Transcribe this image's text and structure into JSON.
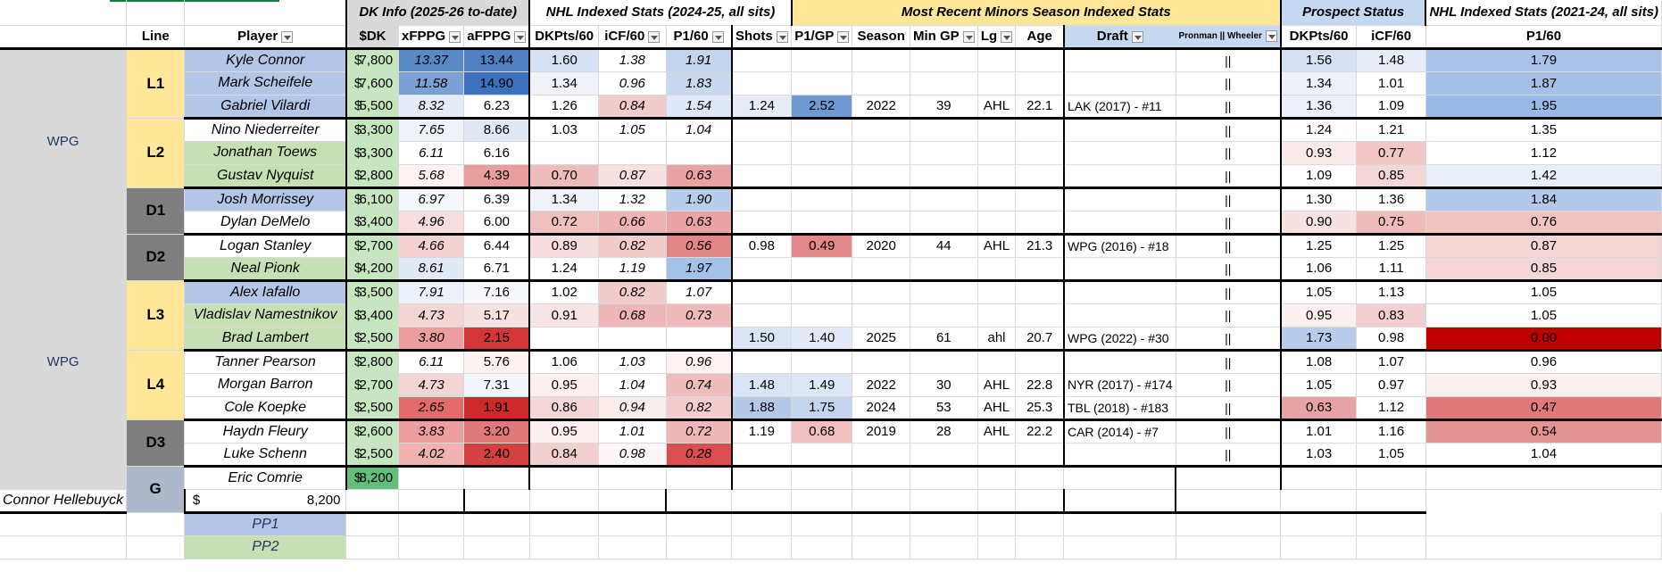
{
  "headers": {
    "groups": [
      {
        "name": "dk_group",
        "label": "DK Info (2025-26 to-date)"
      },
      {
        "name": "nhl_group",
        "label": "NHL Indexed Stats (2024-25, all sits)"
      },
      {
        "name": "minors_group",
        "label": "Most Recent Minors Season Indexed Stats"
      },
      {
        "name": "prospect_group",
        "label": "Prospect Status"
      },
      {
        "name": "nhl3_group",
        "label": "NHL Indexed Stats (2021-24, all sits)"
      }
    ],
    "columns": [
      "Line",
      "Player",
      "$DK",
      "xFPPG",
      "aFPPG",
      "DKPts/60",
      "iCF/60",
      "P1/60",
      "Shots",
      "P1/GP",
      "Season",
      "Min GP",
      "Lg",
      "Age",
      "Draft",
      "Pronman || Wheeler",
      "DKPts/60",
      "iCF/60",
      "P1/60"
    ]
  },
  "team_labels": [
    "WPG",
    "WPG"
  ],
  "groups": [
    {
      "line": "L1",
      "type": "F",
      "rows": [
        {
          "player": "Kyle Connor",
          "pc": "blue",
          "dk": "7,800",
          "xf": "13.37",
          "af": "13.44",
          "nhl": [
            "1.60",
            "1.38",
            "1.91"
          ],
          "min": [
            "",
            "",
            "",
            "",
            "",
            ""
          ],
          "draft": "",
          "pr": "||",
          "n3": [
            "1.56",
            "1.48",
            "1.79"
          ],
          "c": {
            "xf": "#5a8ac6",
            "af": "#4f81c2",
            "n0": "#d6e2f3",
            "n1": "#fff",
            "n2": "#c2d4ee",
            "n30": "#d6e2f3",
            "n31": "#e8eef8",
            "n32": "#a9c3e8"
          }
        },
        {
          "player": "Mark Scheifele",
          "pc": "blue",
          "dk": "7,600",
          "xf": "11.58",
          "af": "14.90",
          "nhl": [
            "1.34",
            "0.96",
            "1.83"
          ],
          "min": [
            "",
            "",
            "",
            "",
            "",
            ""
          ],
          "draft": "",
          "pr": "||",
          "n3": [
            "1.34",
            "1.01",
            "1.87"
          ],
          "c": {
            "xf": "#7ba0d4",
            "af": "#3d71be",
            "n0": "#eef3fa",
            "n1": "#fff",
            "n2": "#c8d8ef",
            "n30": "#edf2fa",
            "n31": "#fff",
            "n32": "#a4c0e6"
          }
        },
        {
          "player": "Gabriel Vilardi",
          "pc": "blue",
          "dk": "5,500",
          "xf": "8.32",
          "af": "6.23",
          "nhl": [
            "1.26",
            "0.84",
            "1.54"
          ],
          "min": [
            "1.24",
            "2.52",
            "2022",
            "39",
            "AHL",
            "22.1"
          ],
          "draft": "LAK (2017) - #11",
          "pr": "||",
          "n3": [
            "1.36",
            "1.09",
            "1.95"
          ],
          "c": {
            "xf": "#e6ecf7",
            "af": "#fff",
            "n0": "#fff",
            "n1": "#f2cccc",
            "n2": "#dfe8f6",
            "n30": "#ebf0f9",
            "n31": "#fff",
            "n32": "#9ab9e4",
            "m0": "#e6edf8",
            "m1": "#6e9ad3"
          }
        }
      ]
    },
    {
      "line": "L2",
      "type": "F",
      "rows": [
        {
          "player": "Nino Niederreiter",
          "pc": "none",
          "dk": "3,300",
          "xf": "7.65",
          "af": "8.66",
          "nhl": [
            "1.03",
            "1.05",
            "1.04"
          ],
          "min": [
            "",
            "",
            "",
            "",
            "",
            ""
          ],
          "draft": "",
          "pr": "||",
          "n3": [
            "1.24",
            "1.21",
            "1.35"
          ],
          "c": {
            "xf": "#eef2fa",
            "af": "#e0e8f6",
            "n0": "#fff",
            "n1": "#fff",
            "n2": "#fff",
            "n30": "#fff",
            "n31": "#fff",
            "n32": "#fff"
          }
        },
        {
          "player": "Jonathan Toews",
          "pc": "green",
          "dk": "3,300",
          "xf": "6.11",
          "af": "6.16",
          "nhl": [
            "",
            "",
            ""
          ],
          "min": [
            "",
            "",
            "",
            "",
            "",
            ""
          ],
          "draft": "",
          "pr": "||",
          "n3": [
            "0.93",
            "0.77",
            "1.12"
          ],
          "c": {
            "xf": "#fff",
            "af": "#fff",
            "n30": "#fbeaea",
            "n31": "#f0c6c6",
            "n32": "#fff"
          }
        },
        {
          "player": "Gustav Nyquist",
          "pc": "green",
          "dk": "2,800",
          "xf": "5.68",
          "af": "4.39",
          "nhl": [
            "0.70",
            "0.87",
            "0.63"
          ],
          "min": [
            "",
            "",
            "",
            "",
            "",
            ""
          ],
          "draft": "",
          "pr": "||",
          "n3": [
            "1.09",
            "0.85",
            "1.42"
          ],
          "c": {
            "xf": "#fdf3f3",
            "af": "#e99e9e",
            "n0": "#efbcbc",
            "n1": "#f7e0e0",
            "n2": "#e9a3a3",
            "n30": "#fff",
            "n31": "#f5d6d6",
            "n32": "#e9eff9"
          }
        }
      ]
    },
    {
      "line": "D1",
      "type": "D",
      "rows": [
        {
          "player": "Josh Morrissey",
          "pc": "blue",
          "dk": "6,100",
          "xf": "6.97",
          "af": "6.39",
          "nhl": [
            "1.34",
            "1.32",
            "1.90"
          ],
          "min": [
            "",
            "",
            "",
            "",
            "",
            ""
          ],
          "draft": "",
          "pr": "||",
          "n3": [
            "1.30",
            "1.36",
            "1.84"
          ],
          "c": {
            "xf": "#f4f7fc",
            "af": "#fff",
            "n0": "#eef3fa",
            "n1": "#fff",
            "n2": "#b8cdec",
            "n30": "#fff",
            "n31": "#fff",
            "n32": "#b2c9ea"
          }
        },
        {
          "player": "Dylan DeMelo",
          "pc": "none",
          "dk": "3,400",
          "xf": "4.96",
          "af": "6.00",
          "nhl": [
            "0.72",
            "0.66",
            "0.63"
          ],
          "min": [
            "",
            "",
            "",
            "",
            "",
            ""
          ],
          "draft": "",
          "pr": "||",
          "n3": [
            "0.90",
            "0.75",
            "0.76"
          ],
          "c": {
            "xf": "#f7dddd",
            "af": "#fff",
            "n0": "#f0c0c0",
            "n1": "#eeb4b4",
            "n2": "#e9a3a3",
            "n30": "#f7e1e1",
            "n31": "#efbcbc",
            "n32": "#f1c4c4"
          }
        }
      ]
    },
    {
      "line": "D2",
      "type": "D",
      "rows": [
        {
          "player": "Logan Stanley",
          "pc": "none",
          "dk": "2,700",
          "xf": "4.66",
          "af": "6.44",
          "nhl": [
            "0.89",
            "0.82",
            "0.56"
          ],
          "min": [
            "0.98",
            "0.49",
            "2020",
            "44",
            "AHL",
            "21.3"
          ],
          "draft": "WPG (2016) - #18",
          "pr": "||",
          "n3": [
            "1.25",
            "1.25",
            "0.87"
          ],
          "c": {
            "xf": "#f4d2d2",
            "af": "#fff",
            "n0": "#f6dcdc",
            "n1": "#f2cbcb",
            "n2": "#e28686",
            "n30": "#fff",
            "n31": "#fff",
            "n32": "#f5d6d6",
            "m0": "#fff",
            "m1": "#e38888"
          }
        },
        {
          "player": "Neal Pionk",
          "pc": "green",
          "dk": "4,200",
          "xf": "8.61",
          "af": "6.71",
          "nhl": [
            "1.24",
            "1.19",
            "1.97"
          ],
          "min": [
            "",
            "",
            "",
            "",
            "",
            ""
          ],
          "draft": "",
          "pr": "||",
          "n3": [
            "1.06",
            "1.11",
            "0.85"
          ],
          "c": {
            "xf": "#e1e9f6",
            "af": "#fff",
            "n0": "#fff",
            "n1": "#fff",
            "n2": "#a6c1e7",
            "n30": "#fff",
            "n31": "#fff",
            "n32": "#f5d6d6"
          }
        }
      ]
    },
    {
      "line": "L3",
      "type": "F",
      "rows": [
        {
          "player": "Alex Iafallo",
          "pc": "blue",
          "dk": "3,500",
          "xf": "7.91",
          "af": "7.16",
          "nhl": [
            "1.02",
            "0.82",
            "1.07"
          ],
          "min": [
            "",
            "",
            "",
            "",
            "",
            ""
          ],
          "draft": "",
          "pr": "||",
          "n3": [
            "1.05",
            "1.13",
            "1.05"
          ],
          "c": {
            "xf": "#ebf0f9",
            "af": "#f6f8fc",
            "n0": "#fff",
            "n1": "#f2cbcb",
            "n2": "#fff",
            "n30": "#fff",
            "n31": "#fff",
            "n32": "#fff"
          }
        },
        {
          "player": "Vladislav Namestnikov",
          "pc": "green",
          "dk": "3,400",
          "xf": "4.73",
          "af": "5.17",
          "nhl": [
            "0.91",
            "0.68",
            "0.73"
          ],
          "min": [
            "",
            "",
            "",
            "",
            "",
            ""
          ],
          "draft": "",
          "pr": "||",
          "n3": [
            "0.95",
            "0.83",
            "1.05"
          ],
          "c": {
            "xf": "#f5d4d4",
            "af": "#f8e1e1",
            "n0": "#f8e4e4",
            "n1": "#eeb6b6",
            "n2": "#efbaba",
            "n30": "#fcefef",
            "n31": "#f3cfcf",
            "n32": "#fff"
          }
        },
        {
          "player": "Brad Lambert",
          "pc": "green",
          "dk": "2,500",
          "xf": "3.80",
          "af": "2.15",
          "nhl": [
            "",
            "",
            ""
          ],
          "min": [
            "1.50",
            "1.40",
            "2025",
            "61",
            "ahl",
            "20.7"
          ],
          "draft": "WPG (2022) - #30",
          "pr": "||",
          "n3": [
            "1.73",
            "0.98",
            "0.00"
          ],
          "c": {
            "xf": "#ec9d9d",
            "af": "#d23636",
            "n30": "#b8ccec",
            "n31": "#fff",
            "n32": "#c00000",
            "m0": "#d9e4f4",
            "m1": "#e3eaf7"
          }
        }
      ]
    },
    {
      "line": "L4",
      "type": "F",
      "rows": [
        {
          "player": "Tanner Pearson",
          "pc": "none",
          "dk": "2,800",
          "xf": "6.11",
          "af": "5.76",
          "nhl": [
            "1.06",
            "1.03",
            "0.96"
          ],
          "min": [
            "",
            "",
            "",
            "",
            "",
            ""
          ],
          "draft": "",
          "pr": "||",
          "n3": [
            "1.08",
            "1.07",
            "0.96"
          ],
          "c": {
            "xf": "#fff",
            "af": "#fdf2f2",
            "n0": "#fff",
            "n1": "#fff",
            "n2": "#fdf3f3",
            "n30": "#fff",
            "n31": "#fff",
            "n32": "#fff"
          }
        },
        {
          "player": "Morgan Barron",
          "pc": "none",
          "dk": "2,700",
          "xf": "4.73",
          "af": "7.31",
          "nhl": [
            "0.95",
            "1.04",
            "0.74"
          ],
          "min": [
            "1.48",
            "1.49",
            "2022",
            "30",
            "AHL",
            "22.8"
          ],
          "draft": "NYR (2017) - #174",
          "pr": "||",
          "n3": [
            "1.05",
            "0.97",
            "0.93"
          ],
          "c": {
            "xf": "#f5d4d4",
            "af": "#f2f5fb",
            "n0": "#fcefef",
            "n1": "#fff",
            "n2": "#efbcbc",
            "n30": "#fff",
            "n31": "#fff",
            "n32": "#fcefef",
            "m0": "#dae4f4",
            "m1": "#dde7f5"
          }
        },
        {
          "player": "Cole Koepke",
          "pc": "none",
          "dk": "2,500",
          "xf": "2.65",
          "af": "1.91",
          "nhl": [
            "0.86",
            "0.94",
            "0.82"
          ],
          "min": [
            "1.88",
            "1.75",
            "2024",
            "53",
            "AHL",
            "25.3"
          ],
          "draft": "TBL (2018) - #183",
          "pr": "||",
          "n3": [
            "0.63",
            "1.12",
            "0.47"
          ],
          "c": {
            "xf": "#e46b6b",
            "af": "#cc2a2a",
            "n0": "#f5d7d7",
            "n1": "#fbecec",
            "n2": "#f3cdcd",
            "n30": "#e8a4a4",
            "n31": "#fff",
            "n32": "#e07a7a",
            "m0": "#b4c9ea",
            "m1": "#c3d5ee"
          }
        }
      ]
    },
    {
      "line": "D3",
      "type": "D",
      "rows": [
        {
          "player": "Haydn Fleury",
          "pc": "none",
          "dk": "2,600",
          "xf": "3.83",
          "af": "3.20",
          "nhl": [
            "0.95",
            "1.01",
            "0.72"
          ],
          "min": [
            "1.19",
            "0.68",
            "2019",
            "28",
            "AHL",
            "22.2"
          ],
          "draft": "CAR (2014) - #7",
          "pr": "||",
          "n3": [
            "1.01",
            "1.16",
            "0.54"
          ],
          "c": {
            "xf": "#ed9f9f",
            "af": "#e07979",
            "n0": "#fcefef",
            "n1": "#fff",
            "n2": "#eeb8b8",
            "n30": "#fff",
            "n31": "#fff",
            "n32": "#e49393",
            "m0": "#fff",
            "m1": "#f0c0c0"
          }
        },
        {
          "player": "Luke Schenn",
          "pc": "none",
          "dk": "2,500",
          "xf": "4.02",
          "af": "2.40",
          "nhl": [
            "0.84",
            "0.98",
            "0.28"
          ],
          "min": [
            "",
            "",
            "",
            "",
            "",
            ""
          ],
          "draft": "",
          "pr": "||",
          "n3": [
            "1.03",
            "1.05",
            "1.04"
          ],
          "c": {
            "xf": "#f0b1b1",
            "af": "#d44141",
            "n0": "#f3d0d0",
            "n1": "#fdf6f6",
            "n2": "#d94f4f",
            "n30": "#fff",
            "n31": "#fff",
            "n32": "#fff"
          }
        }
      ]
    },
    {
      "line": "G",
      "type": "G",
      "rows": [
        {
          "player": "Eric Comrie",
          "pc": "none",
          "dk": "8,200",
          "g": "g1"
        },
        {
          "player": "Connor Hellebuyck",
          "pc": "none",
          "dk": "8,200",
          "g": "none"
        }
      ]
    }
  ],
  "pp_rows": [
    {
      "label": "PP1",
      "pc": "blue"
    },
    {
      "label": "PP2",
      "pc": "green"
    }
  ],
  "colors": {
    "accent_green": "#107c41"
  }
}
